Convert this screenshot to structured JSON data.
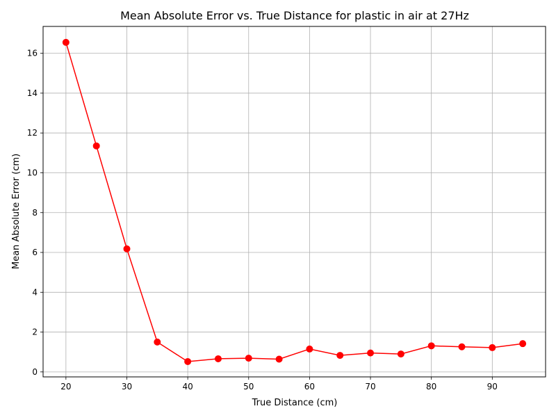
{
  "chart_data": {
    "type": "line",
    "title": "Mean Absolute Error vs. True Distance for plastic in air at 27Hz",
    "xlabel": "True Distance (cm)",
    "ylabel": "Mean Absolute Error (cm)",
    "xlim": [
      16.25,
      98.75
    ],
    "ylim": [
      -0.25,
      17.35
    ],
    "xticks": [
      20,
      30,
      40,
      50,
      60,
      70,
      80,
      90
    ],
    "yticks": [
      0,
      2,
      4,
      6,
      8,
      10,
      12,
      14,
      16
    ],
    "grid": true,
    "series": [
      {
        "color": "#ff0000",
        "marker": "circle",
        "x": [
          20,
          25,
          30,
          35,
          40,
          45,
          50,
          55,
          60,
          65,
          70,
          75,
          80,
          85,
          90,
          95
        ],
        "y": [
          16.55,
          11.35,
          6.18,
          1.5,
          0.52,
          0.66,
          0.69,
          0.64,
          1.15,
          0.83,
          0.95,
          0.9,
          1.31,
          1.26,
          1.22,
          1.42
        ]
      }
    ]
  }
}
